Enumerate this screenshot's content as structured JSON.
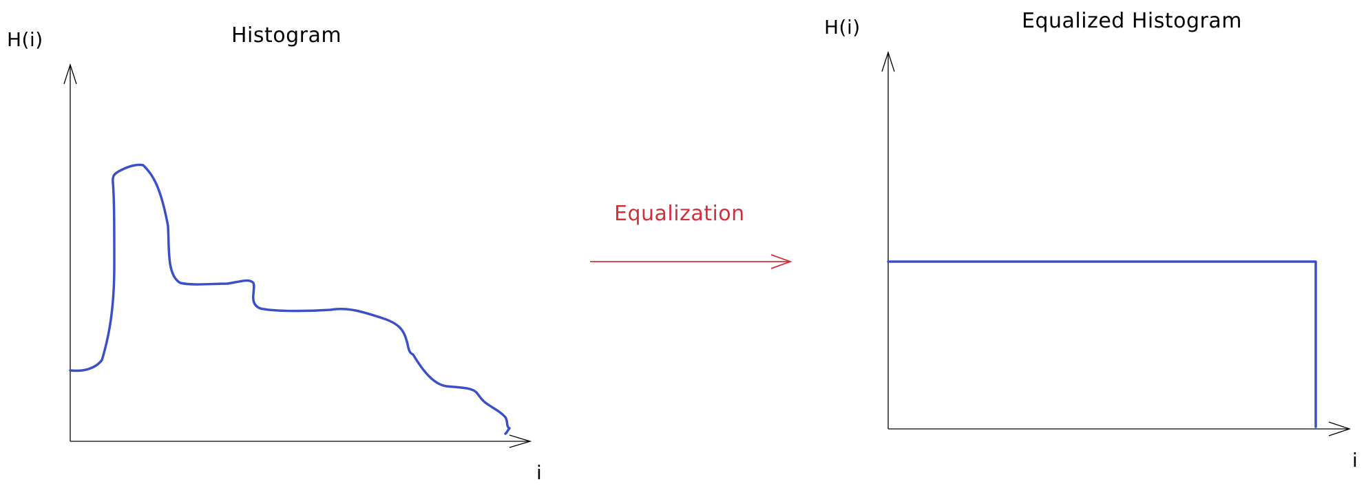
{
  "colors": {
    "axis": "#000000",
    "curve": "#3b4fc7",
    "transform": "#d22f3a",
    "background": "#ffffff"
  },
  "left_panel": {
    "title": "Histogram",
    "y_axis_label": "H(i)",
    "x_axis_label": "i"
  },
  "transform": {
    "label": "Equalization"
  },
  "right_panel": {
    "title": "Equalized Histogram",
    "y_axis_label": "H(i)",
    "x_axis_label": "i"
  }
}
